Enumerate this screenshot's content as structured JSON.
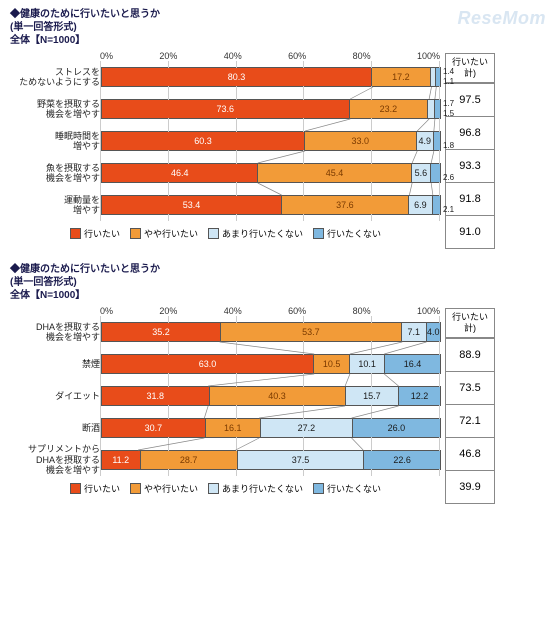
{
  "watermark": "ReseMom",
  "survey_title_line1": "◆健康のために行いたいと思うか",
  "survey_title_line2": "(単一回答形式)",
  "survey_title_line3": "全体【N=1000】",
  "axis_ticks": [
    "0%",
    "20%",
    "40%",
    "60%",
    "80%",
    "100%"
  ],
  "side_header_line1": "行いたい",
  "side_header_line2": "計)",
  "colors": {
    "c1": "#e84c1a",
    "c2": "#f29b38",
    "c3": "#cfe6f5",
    "c4": "#7fb8e0",
    "text_light": "#ffffff",
    "text_on_orange": "#7a3a00",
    "text_dark": "#1a1a1a",
    "connector": "#888888"
  },
  "legend": [
    {
      "label": "行いたい",
      "color": "c1"
    },
    {
      "label": "やや行いたい",
      "color": "c2"
    },
    {
      "label": "あまり行いたくない",
      "color": "c3"
    },
    {
      "label": "行いたくない",
      "color": "c4"
    }
  ],
  "chart1": {
    "rows": [
      {
        "label": "ストレスを\nためないようにする",
        "vals": [
          80.3,
          17.2,
          1.4,
          1.1
        ],
        "show": [
          true,
          true,
          false,
          false
        ],
        "side": 97.5,
        "tiny": [
          "1.4",
          "1.1"
        ]
      },
      {
        "label": "野菜を摂取する\n機会を増やす",
        "vals": [
          73.6,
          23.2,
          1.7,
          1.5
        ],
        "show": [
          true,
          true,
          false,
          false
        ],
        "side": 96.8,
        "tiny": [
          "1.7",
          "1.5"
        ]
      },
      {
        "label": "睡眠時間を\n増やす",
        "vals": [
          60.3,
          33.0,
          4.9,
          1.8
        ],
        "show": [
          true,
          true,
          true,
          false
        ],
        "side": 93.3,
        "tiny": [
          "",
          "1.8"
        ]
      },
      {
        "label": "魚を摂取する\n機会を増やす",
        "vals": [
          46.4,
          45.4,
          5.6,
          2.6
        ],
        "show": [
          true,
          true,
          true,
          false
        ],
        "side": 91.8,
        "tiny": [
          "",
          "2.6"
        ]
      },
      {
        "label": "運動量を\n増やす",
        "vals": [
          53.4,
          37.6,
          6.9,
          2.1
        ],
        "show": [
          true,
          true,
          true,
          false
        ],
        "side": 91.0,
        "tiny": [
          "",
          "2.1"
        ]
      }
    ]
  },
  "chart2": {
    "rows": [
      {
        "label": "DHAを摂取する\n機会を増やす",
        "vals": [
          35.2,
          53.7,
          7.1,
          4.0
        ],
        "show": [
          true,
          true,
          true,
          true
        ],
        "side": 88.9,
        "tiny": [
          "",
          ""
        ]
      },
      {
        "label": "禁煙",
        "vals": [
          63.0,
          10.5,
          10.1,
          16.4
        ],
        "show": [
          true,
          true,
          true,
          true
        ],
        "side": 73.5,
        "tiny": [
          "",
          ""
        ]
      },
      {
        "label": "ダイエット",
        "vals": [
          31.8,
          40.3,
          15.7,
          12.2
        ],
        "show": [
          true,
          true,
          true,
          true
        ],
        "side": 72.1,
        "tiny": [
          "",
          ""
        ]
      },
      {
        "label": "断酒",
        "vals": [
          30.7,
          16.1,
          27.2,
          26.0
        ],
        "show": [
          true,
          true,
          true,
          true
        ],
        "side": 46.8,
        "tiny": [
          "",
          ""
        ]
      },
      {
        "label": "サプリメントから\nDHAを摂取する\n機会を増やす",
        "vals": [
          11.2,
          28.7,
          37.5,
          22.6
        ],
        "show": [
          true,
          true,
          true,
          true
        ],
        "side": 39.9,
        "tiny": [
          "",
          ""
        ]
      }
    ]
  }
}
